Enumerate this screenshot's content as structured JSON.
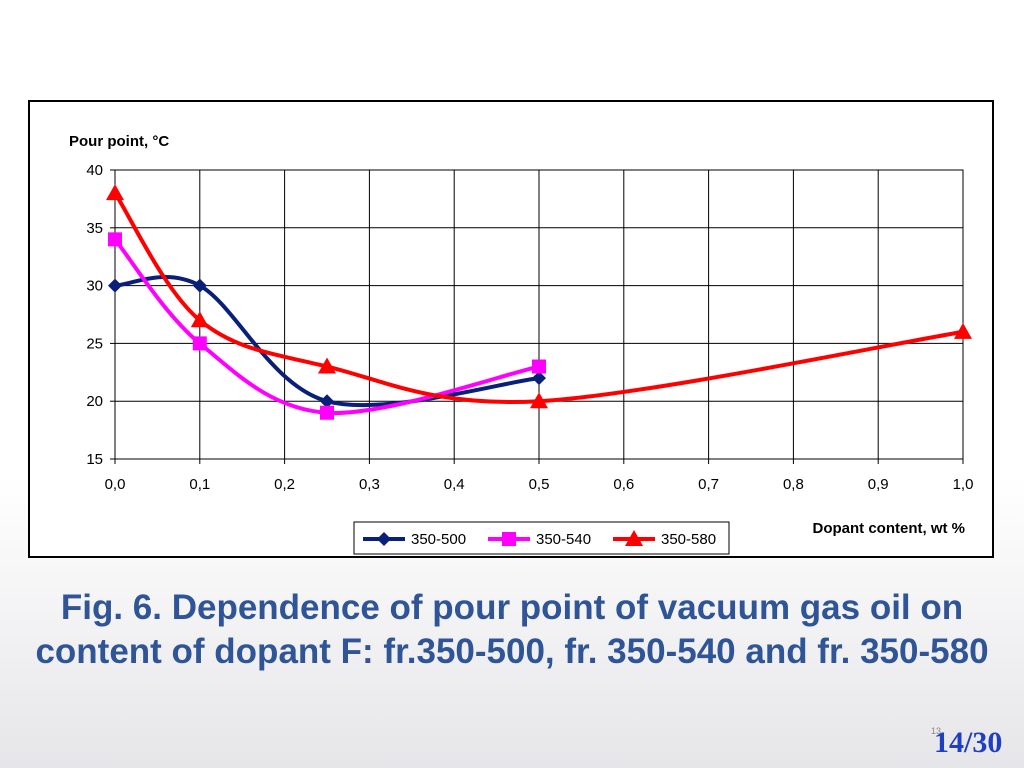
{
  "chart_data": {
    "type": "line",
    "title": "",
    "ylabel": "Pour point, °C",
    "xlabel": "Dopant content, wt %",
    "xlim": [
      0,
      1
    ],
    "ylim": [
      15,
      40
    ],
    "grid": true,
    "legend_position": "bottom-center",
    "x_tick_labels": [
      "0,0",
      "0,1",
      "0,2",
      "0,3",
      "0,4",
      "0,5",
      "0,6",
      "0,7",
      "0,8",
      "0,9",
      "1,0"
    ],
    "y_tick_labels": [
      "15",
      "20",
      "25",
      "30",
      "35",
      "40"
    ],
    "series": [
      {
        "name": "350-500",
        "color": "#0a1f7a",
        "marker": "diamond",
        "x": [
          0,
          0.1,
          0.25,
          0.5
        ],
        "y": [
          30,
          30,
          20,
          22
        ]
      },
      {
        "name": "350-540",
        "color": "#ff00ff",
        "marker": "square",
        "x": [
          0,
          0.1,
          0.25,
          0.5
        ],
        "y": [
          34,
          25,
          19,
          23
        ]
      },
      {
        "name": "350-580",
        "color": "#ff0000",
        "marker": "triangle",
        "x": [
          0,
          0.1,
          0.25,
          0.5,
          1.0
        ],
        "y": [
          38,
          27,
          23,
          20,
          26
        ]
      }
    ]
  },
  "caption": "Fig. 6. Dependence of pour point of vacuum gas oil on content of dopant F: fr.350-500, fr. 350-540 and fr. 350-580",
  "slide_number": "13",
  "page_counter": "14/30"
}
